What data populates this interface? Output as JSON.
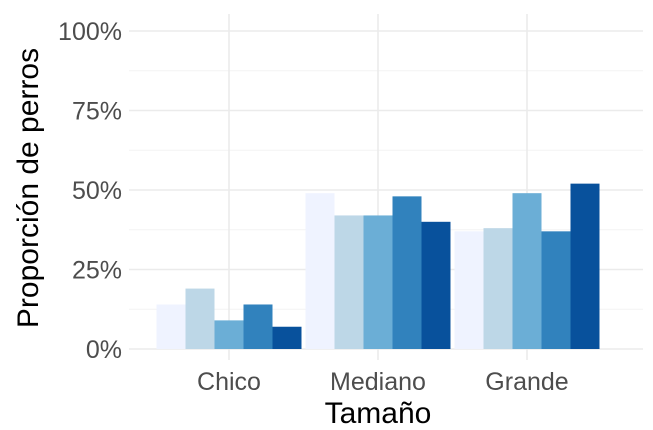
{
  "chart_data": {
    "type": "bar",
    "xlabel": "Tamaño",
    "ylabel": "Proporción de perros",
    "categories": [
      "Chico",
      "Mediano",
      "Grande"
    ],
    "yticks": [
      "0%",
      "25%",
      "50%",
      "75%",
      "100%"
    ],
    "ylim": [
      0,
      1
    ],
    "grid": true,
    "legend": "none",
    "series": [
      {
        "color": "#eff3ff",
        "values": [
          0.14,
          0.49,
          0.37
        ]
      },
      {
        "color": "#bdd7e7",
        "values": [
          0.19,
          0.42,
          0.38
        ]
      },
      {
        "color": "#6baed6",
        "values": [
          0.09,
          0.42,
          0.49
        ]
      },
      {
        "color": "#3182bd",
        "values": [
          0.14,
          0.48,
          0.37
        ]
      },
      {
        "color": "#08519c",
        "values": [
          0.07,
          0.4,
          0.52
        ]
      }
    ]
  }
}
